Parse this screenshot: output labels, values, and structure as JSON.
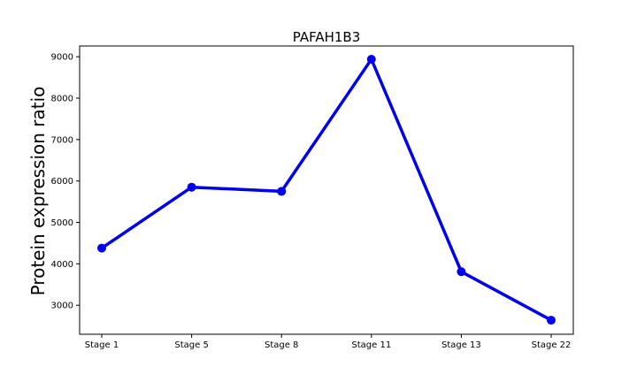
{
  "chart_data": {
    "type": "line",
    "title": "PAFAH1B3",
    "xlabel": "",
    "ylabel": "Protein expression ratio",
    "categories": [
      "Stage 1",
      "Stage 5",
      "Stage 8",
      "Stage 11",
      "Stage 13",
      "Stage 22"
    ],
    "series": [
      {
        "values": [
          4380,
          5850,
          5750,
          8940,
          3810,
          2640
        ],
        "color": "#0000ee"
      }
    ],
    "yticks": [
      3000,
      4000,
      5000,
      6000,
      7000,
      8000,
      9000
    ],
    "ylim": [
      2300,
      9260
    ],
    "grid": false,
    "legend": "none"
  }
}
